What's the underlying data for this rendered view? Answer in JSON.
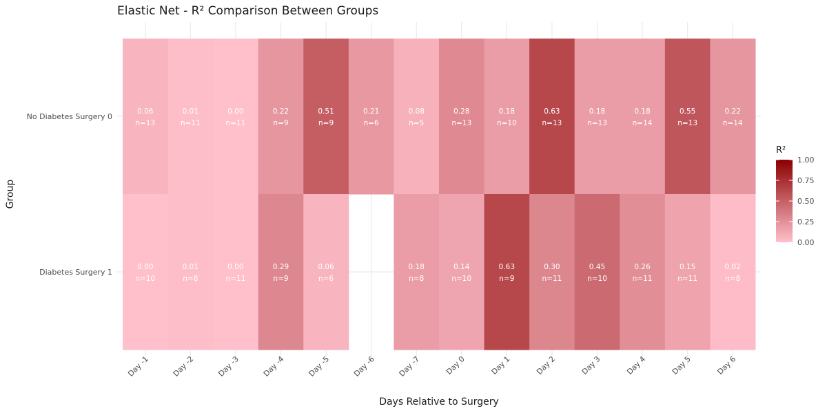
{
  "chart_data": {
    "type": "heatmap",
    "title": "Elastic Net - R² Comparison Between Groups",
    "xlabel": "Days Relative to Surgery",
    "ylabel": "Group",
    "x_categories": [
      "Day -1",
      "Day -2",
      "Day -3",
      "Day -4",
      "Day -5",
      "Day -6",
      "Day -7",
      "Day 0",
      "Day 1",
      "Day 2",
      "Day 3",
      "Day 4",
      "Day 5",
      "Day 6"
    ],
    "y_categories": [
      "No Diabetes Surgery 0",
      "Diabetes Surgery 1"
    ],
    "rows": [
      {
        "group": "No Diabetes Surgery 0",
        "r2_labels": [
          "0.06",
          "0.01",
          "0.00",
          "0.22",
          "0.51",
          "0.21",
          "0.08",
          "0.28",
          "0.18",
          "0.63",
          "0.18",
          "0.18",
          "0.55",
          "0.22"
        ],
        "n_labels": [
          "n=13",
          "n=11",
          "n=11",
          "n=9",
          "n=9",
          "n=6",
          "n=5",
          "n=13",
          "n=10",
          "n=13",
          "n=13",
          "n=14",
          "n=13",
          "n=14"
        ]
      },
      {
        "group": "Diabetes Surgery 1",
        "r2_labels": [
          "0.00",
          "0.01",
          "0.00",
          "0.29",
          "0.06",
          null,
          "0.18",
          "0.14",
          "0.63",
          "0.30",
          "0.45",
          "0.26",
          "0.15",
          "0.02"
        ],
        "n_labels": [
          "n=10",
          "n=8",
          "n=11",
          "n=9",
          "n=6",
          null,
          "n=8",
          "n=10",
          "n=9",
          "n=11",
          "n=10",
          "n=11",
          "n=11",
          "n=8"
        ]
      }
    ],
    "legend": {
      "title": "R²",
      "position": "right",
      "ticks": [
        "1.00",
        "0.75",
        "0.50",
        "0.25",
        "0.00"
      ],
      "range": [
        0,
        1
      ]
    },
    "colors": {
      "low": "#ffc0cb",
      "high": "#8b0000",
      "grid": "#ebebeb"
    },
    "grid": true
  }
}
